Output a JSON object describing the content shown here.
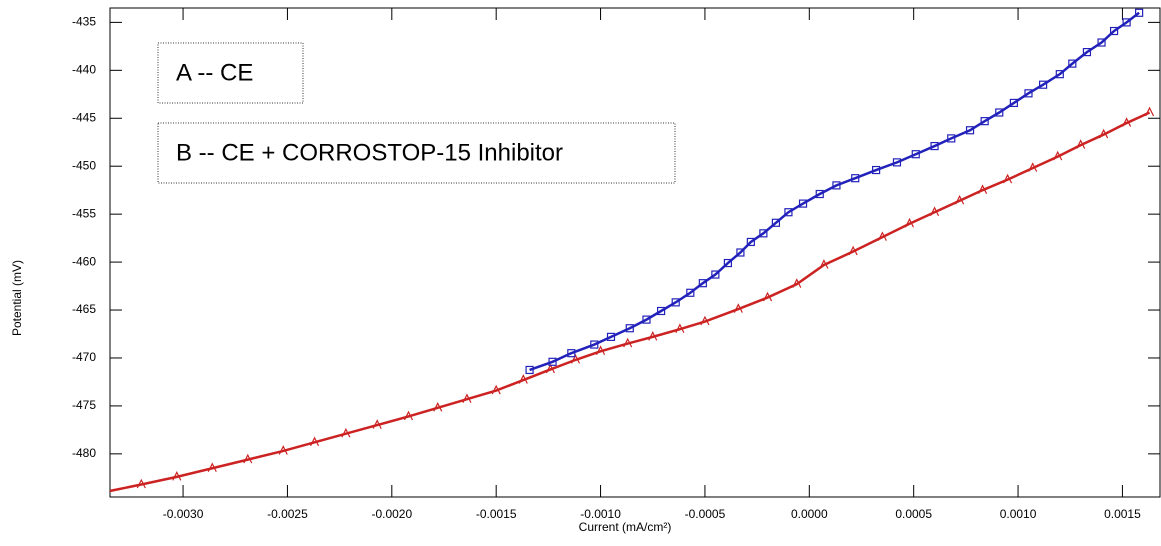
{
  "chart_data": {
    "type": "line",
    "xlabel": "Current (mA/cm²)",
    "ylabel": "Potential (mV)",
    "xlim": [
      -0.00335,
      0.00168
    ],
    "ylim": [
      -484.5,
      -433.5
    ],
    "xticks": [
      {
        "value": -0.003,
        "label": "-0.0030"
      },
      {
        "value": -0.0025,
        "label": "-0.0025"
      },
      {
        "value": -0.002,
        "label": "-0.0020"
      },
      {
        "value": -0.0015,
        "label": "-0.0015"
      },
      {
        "value": -0.001,
        "label": "-0.0010"
      },
      {
        "value": -0.0005,
        "label": "-0.0005"
      },
      {
        "value": 0,
        "label": "0.0000"
      },
      {
        "value": 0.0005,
        "label": "0.0005"
      },
      {
        "value": 0.001,
        "label": "0.0010"
      },
      {
        "value": 0.0015,
        "label": "0.0015"
      }
    ],
    "yticks": [
      -480,
      -475,
      -470,
      -465,
      -460,
      -455,
      -450,
      -445,
      -440,
      -435
    ],
    "grid": false,
    "series": [
      {
        "name": "A -- CE",
        "color": "#cc2222",
        "marker": "triangle",
        "x": [
          -0.00338,
          -0.0032,
          -0.00303,
          -0.00286,
          -0.00269,
          -0.00252,
          -0.00237,
          -0.00222,
          -0.00207,
          -0.00192,
          -0.00178,
          -0.00164,
          -0.0015,
          -0.00137,
          -0.00124,
          -0.00112,
          -0.001,
          -0.00087,
          -0.00075,
          -0.00062,
          -0.0005,
          -0.00034,
          -0.0002,
          -6e-05,
          7e-05,
          0.00021,
          0.00035,
          0.00048,
          0.0006,
          0.00072,
          0.00083,
          0.00095,
          0.00107,
          0.00119,
          0.0013,
          0.00141,
          0.00152,
          0.00163
        ],
        "values": [
          -484.0,
          -483.2,
          -482.4,
          -481.5,
          -480.6,
          -479.7,
          -478.8,
          -477.9,
          -477.0,
          -476.1,
          -475.2,
          -474.3,
          -473.4,
          -472.3,
          -471.2,
          -470.2,
          -469.3,
          -468.5,
          -467.8,
          -467.0,
          -466.2,
          -464.9,
          -463.7,
          -462.3,
          -460.3,
          -458.9,
          -457.4,
          -456.0,
          -454.8,
          -453.6,
          -452.5,
          -451.4,
          -450.2,
          -449.0,
          -447.8,
          -446.7,
          -445.5,
          -444.4
        ]
      },
      {
        "name": "B -- CE + CORROSTOP-15 Inhibitor",
        "color": "#2222bb",
        "marker": "square",
        "x": [
          -0.00134,
          -0.00123,
          -0.00114,
          -0.00103,
          -0.00095,
          -0.00086,
          -0.00078,
          -0.00071,
          -0.00064,
          -0.00057,
          -0.00051,
          -0.00045,
          -0.00039,
          -0.00033,
          -0.00028,
          -0.00022,
          -0.00016,
          -0.0001,
          -3e-05,
          5e-05,
          0.00013,
          0.00022,
          0.00032,
          0.00042,
          0.00051,
          0.0006,
          0.00068,
          0.00077,
          0.00084,
          0.00091,
          0.00098,
          0.00105,
          0.00112,
          0.0012,
          0.00126,
          0.00133,
          0.0014,
          0.00146,
          0.00152,
          0.00158
        ],
        "values": [
          -471.25,
          -470.4,
          -469.5,
          -468.6,
          -467.8,
          -466.9,
          -466.0,
          -465.1,
          -464.2,
          -463.2,
          -462.2,
          -461.3,
          -460.1,
          -459.0,
          -457.9,
          -457.0,
          -455.9,
          -454.8,
          -453.9,
          -452.9,
          -452.0,
          -451.25,
          -450.4,
          -449.6,
          -448.75,
          -447.9,
          -447.1,
          -446.25,
          -445.3,
          -444.4,
          -443.4,
          -442.4,
          -441.5,
          -440.4,
          -439.3,
          -438.1,
          -437.1,
          -435.9,
          -435.0,
          -434.0
        ]
      }
    ]
  }
}
